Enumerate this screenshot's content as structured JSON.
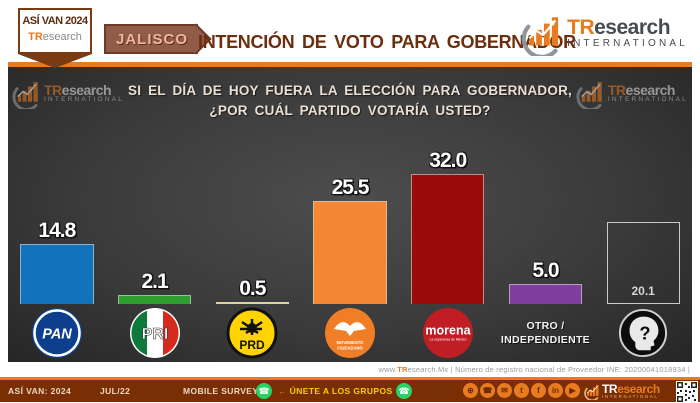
{
  "header": {
    "badge": {
      "line1": "ASÍ VAN 2024",
      "brand_tr": "TR",
      "brand_rest": "esearch"
    },
    "state_tag": "JALISCO",
    "title": "INTENCIÓN DE VOTO PARA GOBERNADOR",
    "logo": {
      "tr": "TR",
      "rest": "esearch",
      "international": "INTERNATIONAL"
    }
  },
  "watermark": {
    "tr": "TR",
    "rest": "esearch",
    "international": "INTERNATIONAL"
  },
  "question": {
    "line1": "SI EL DÍA DE HOY FUERA LA ELECCIÓN PARA GOBERNADOR,",
    "line2": "¿POR CUÁL PARTIDO VOTARÍA USTED?"
  },
  "chart_data": {
    "type": "bar",
    "title": "Intención de voto para gobernador — Jalisco",
    "categories": [
      "PAN",
      "PRI",
      "PRD",
      "Movimiento Ciudadano",
      "Morena",
      "Otro / Independiente",
      "?"
    ],
    "keys": [
      "pan",
      "pri",
      "prd",
      "mc",
      "morena",
      "otro",
      "ns"
    ],
    "values": [
      14.8,
      2.1,
      0.5,
      25.5,
      32.0,
      5.0,
      20.1
    ],
    "labels": [
      "14.8",
      "2.1",
      "0.5",
      "25.5",
      "32.0",
      "5.0",
      "20.1"
    ],
    "colors": [
      "#1173bc",
      "#2f9e30",
      "#e6d48e",
      "#f58634",
      "#9c0b0b",
      "#7e3f9d",
      "none"
    ],
    "label_position": [
      "top",
      "top",
      "top",
      "top",
      "top",
      "top",
      "inside"
    ],
    "xlabel": "",
    "ylabel": "",
    "ylim": [
      0,
      35
    ],
    "grid": false,
    "legend_position": "none"
  },
  "legend": {
    "pan": "PAN",
    "pri": "PRI",
    "prd": "PRD",
    "mc_line1": "MOVIMIENTO",
    "mc_line2": "CIUDADANO",
    "morena": "morena",
    "morena_tagline": "La esperanza de México",
    "otro_line1": "OTRO /",
    "otro_line2": "INDEPENDIENTE",
    "question_mark": "?"
  },
  "info_strip": {
    "prefix": "www.",
    "brand": "TR",
    "rest": "esearch.Mx | Número de registro nacional de Proveedor INE: 20200041018934 |"
  },
  "footer": {
    "left": "ASÍ VAN: 2024",
    "date": "JUL/22",
    "survey": "MOBILE SURVEY",
    "arrow_left": "←",
    "join": "ÚNETE A LOS GRUPOS",
    "arrow_right": "→",
    "whatsapp_glyph": "☎",
    "social": [
      {
        "name": "globe",
        "glyph": "⊕"
      },
      {
        "name": "whatsapp",
        "glyph": "☎"
      },
      {
        "name": "email",
        "glyph": "✉"
      },
      {
        "name": "twitter",
        "glyph": "t"
      },
      {
        "name": "facebook",
        "glyph": "f"
      },
      {
        "name": "linkedin",
        "glyph": "in"
      },
      {
        "name": "youtube",
        "glyph": "▶"
      }
    ],
    "logo": {
      "tr": "TR",
      "rest": "esearch",
      "international": "INTERNATIONAL"
    }
  },
  "colors": {
    "accent_orange": "#e87b1e",
    "footer_bg": "#7a2e04",
    "title_brown": "#6b2e0e",
    "whatsapp_green": "#25d366"
  }
}
